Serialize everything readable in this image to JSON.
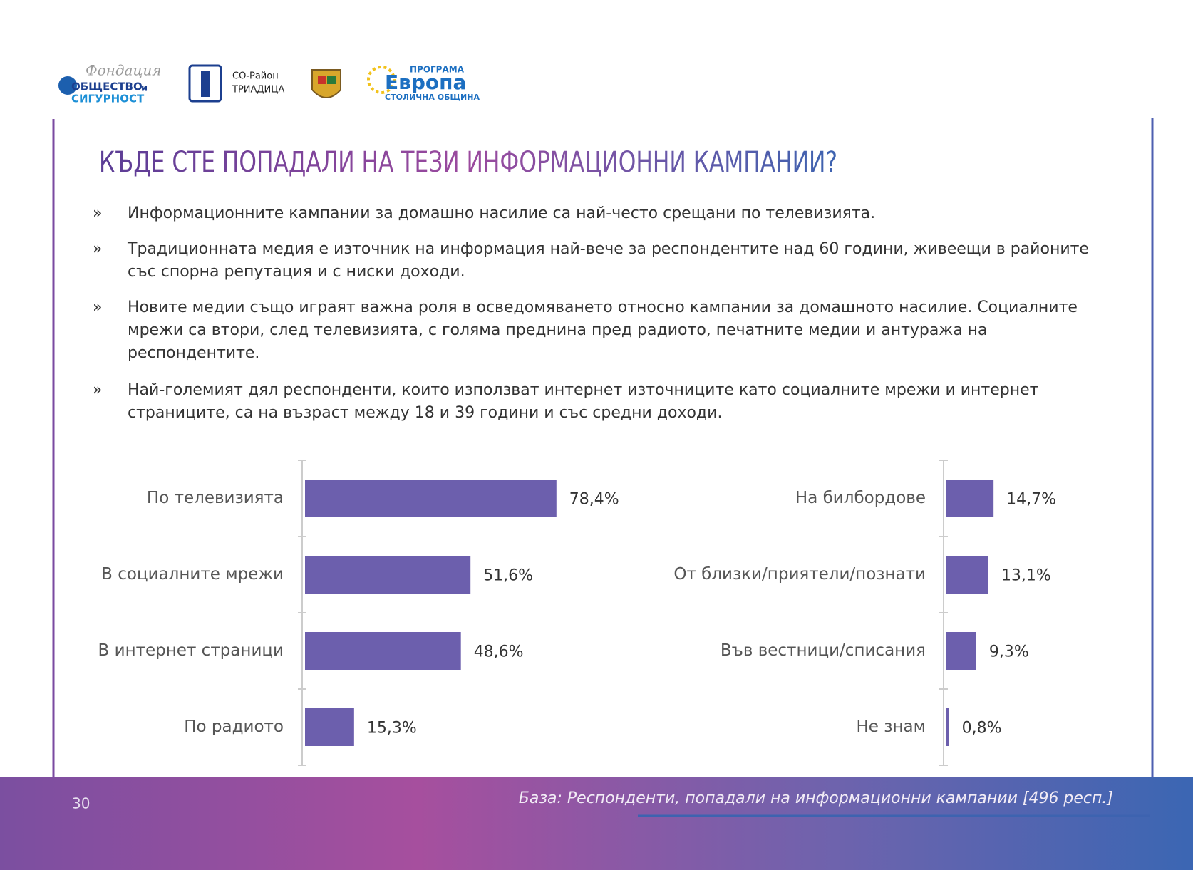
{
  "logos": {
    "foundation_script": "Фондация",
    "foundation_line1": "ОБЩЕСТВО",
    "foundation_and": "и",
    "foundation_line2": "СИГУРНОСТ",
    "district_line1": "СО-Район",
    "district_line2": "ТРИАДИЦА",
    "europe_top": "ПРОГРАМА",
    "europe_main": "Европа",
    "europe_bottom": "СТОЛИЧНА ОБЩИНА"
  },
  "title": "КЪДЕ СТЕ ПОПАДАЛИ НА ТЕЗИ ИНФОРМАЦИОННИ КАМПАНИИ?",
  "bullet_symbol": "»",
  "bullets": [
    "Информационните кампании за домашно насилие са най-често срещани по телевизията.",
    "Традиционната медия е източник на информация най-вече за респондентите над 60 години, живеещи в районите със спорна репутация и с ниски доходи.",
    "Новите медии също играят важна роля в осведомяването относно кампании за домашното насилие. Социалните мрежи са втори, след телевизията, с голяма преднина пред радиото, печатните медии и антуража на респондентите.",
    "Най-големият дял респонденти, които използват интернет източниците като социалните мрежи и интернет страниците, са на възраст между 18 и 39 години и със средни доходи."
  ],
  "chart_data": [
    {
      "type": "bar",
      "orientation": "horizontal",
      "color": "#6c5fad",
      "categories": [
        "По телевизията",
        "В социалните мрежи",
        "В интернет страници",
        "По радиото"
      ],
      "values": [
        78.4,
        51.6,
        48.6,
        15.3
      ],
      "value_labels": [
        "78,4%",
        "51,6%",
        "48,6%",
        "15,3%"
      ]
    },
    {
      "type": "bar",
      "orientation": "horizontal",
      "color": "#6c5fad",
      "categories": [
        "На билбордове",
        "От близки/приятели/познати",
        "Във вестници/списания",
        "Не знам"
      ],
      "values": [
        14.7,
        13.1,
        9.3,
        0.8
      ],
      "value_labels": [
        "14,7%",
        "13,1%",
        "9,3%",
        "0,8%"
      ]
    }
  ],
  "base_note": "База: Респонденти, попадали на информационни кампании  [496 респ.]",
  "page_number": "30"
}
